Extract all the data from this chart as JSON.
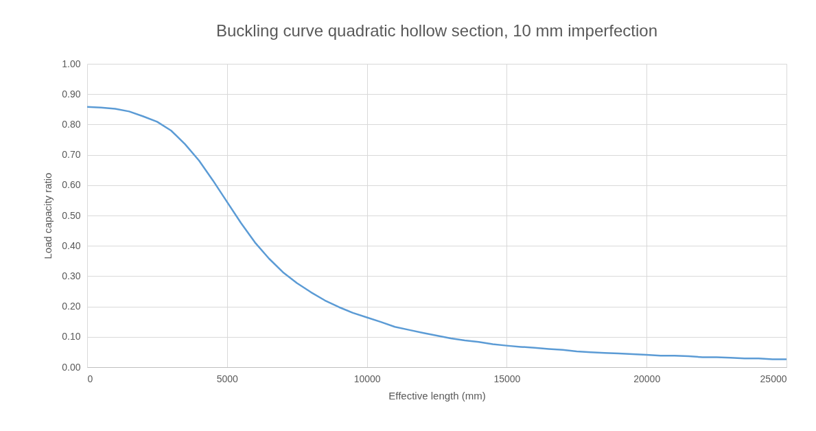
{
  "chart_data": {
    "type": "line",
    "title": "Buckling curve quadratic hollow section, 10 mm imperfection",
    "xlabel": "Effective length (mm)",
    "ylabel": "Load capacity ratio",
    "x": [
      0,
      500,
      1000,
      1500,
      2000,
      2500,
      3000,
      3500,
      4000,
      4500,
      5000,
      5500,
      6000,
      6500,
      7000,
      7500,
      8000,
      8500,
      9000,
      9500,
      10000,
      10500,
      11000,
      11500,
      12000,
      12500,
      13000,
      13500,
      14000,
      14500,
      15000,
      15500,
      16000,
      16500,
      17000,
      17500,
      18000,
      18500,
      19000,
      19500,
      20000,
      20500,
      21000,
      21500,
      22000,
      22500,
      23000,
      23500,
      24000,
      24500,
      25000
    ],
    "series": [
      {
        "color": "#5b9bd5",
        "values": [
          0.858,
          0.856,
          0.852,
          0.843,
          0.827,
          0.809,
          0.78,
          0.735,
          0.681,
          0.615,
          0.545,
          0.475,
          0.411,
          0.358,
          0.313,
          0.277,
          0.247,
          0.22,
          0.198,
          0.179,
          0.164,
          0.149,
          0.133,
          0.123,
          0.113,
          0.104,
          0.095,
          0.088,
          0.083,
          0.076,
          0.071,
          0.067,
          0.064,
          0.06,
          0.057,
          0.052,
          0.049,
          0.047,
          0.045,
          0.043,
          0.041,
          0.038,
          0.038,
          0.036,
          0.033,
          0.033,
          0.031,
          0.029,
          0.029,
          0.026,
          0.026
        ]
      }
    ],
    "xlim": [
      0,
      25000
    ],
    "xticks": [
      0,
      5000,
      10000,
      15000,
      20000,
      25000
    ],
    "ylim": [
      0,
      1
    ],
    "yticks": [
      {
        "value": 0,
        "label": "0.00"
      },
      {
        "value": 0.1,
        "label": "0.10"
      },
      {
        "value": 0.2,
        "label": "0.20"
      },
      {
        "value": 0.3,
        "label": "0.30"
      },
      {
        "value": 0.4,
        "label": "0.40"
      },
      {
        "value": 0.5,
        "label": "0.50"
      },
      {
        "value": 0.6,
        "label": "0.60"
      },
      {
        "value": 0.7,
        "label": "0.70"
      },
      {
        "value": 0.8,
        "label": "0.80"
      },
      {
        "value": 0.9,
        "label": "0.90"
      },
      {
        "value": 1,
        "label": "1.00"
      }
    ],
    "grid": true,
    "marker": "none",
    "line_style": "solid"
  }
}
